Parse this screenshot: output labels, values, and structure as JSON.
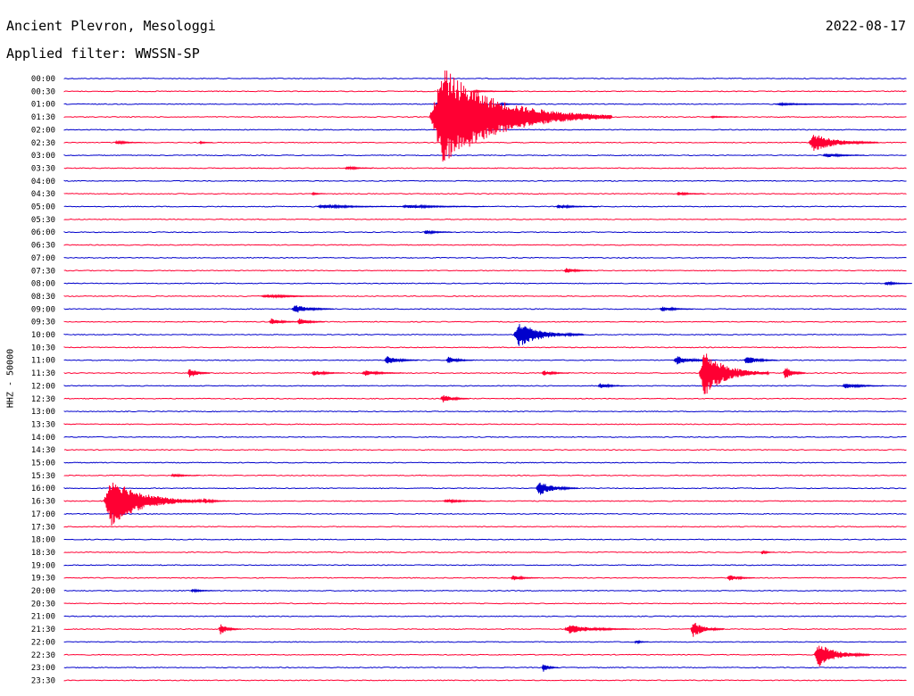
{
  "header": {
    "station": "Ancient Plevron, Mesologgi",
    "filter_label": "Applied filter: WWSSN-SP",
    "date": "2022-08-17"
  },
  "channel_label": "HHZ - 50000",
  "colors": {
    "odd_trace": "#0000cc",
    "even_trace": "#ff0033"
  },
  "chart_data": {
    "type": "helicorder",
    "date": "2022-08-17",
    "filter": "WWSSN-SP",
    "channel": "HHZ - 50000",
    "row_interval_minutes": 30,
    "row_labels": [
      "00:00",
      "00:30",
      "01:00",
      "01:30",
      "02:00",
      "02:30",
      "03:00",
      "03:30",
      "04:00",
      "04:30",
      "05:00",
      "05:30",
      "06:00",
      "06:30",
      "07:00",
      "07:30",
      "08:00",
      "08:30",
      "09:00",
      "09:30",
      "10:00",
      "10:30",
      "11:00",
      "11:30",
      "12:00",
      "12:30",
      "13:00",
      "13:30",
      "14:00",
      "14:30",
      "15:00",
      "15:30",
      "16:00",
      "16:30",
      "17:00",
      "17:30",
      "18:00",
      "18:30",
      "19:00",
      "19:30",
      "20:00",
      "20:30",
      "21:00",
      "21:30",
      "22:00",
      "22:30",
      "23:00",
      "23:30"
    ],
    "row_colors": [
      "#0000cc",
      "#ff0033"
    ],
    "events": [
      {
        "row": 1,
        "minute": 14.5,
        "amp": 1.0,
        "dur": 1.5
      },
      {
        "row": 2,
        "minute": 13.2,
        "amp": 3.2,
        "dur": 1.2
      },
      {
        "row": 2,
        "minute": 15.5,
        "amp": 1.2,
        "dur": 0.8
      },
      {
        "row": 2,
        "minute": 25.3,
        "amp": 1.0,
        "dur": 3.0
      },
      {
        "row": 3,
        "minute": 13.0,
        "amp": 55,
        "dur": 6.5
      },
      {
        "row": 3,
        "minute": 23.0,
        "amp": 1.0,
        "dur": 1.0
      },
      {
        "row": 5,
        "minute": 1.8,
        "amp": 2.0,
        "dur": 1.0
      },
      {
        "row": 5,
        "minute": 4.8,
        "amp": 1.2,
        "dur": 0.5
      },
      {
        "row": 5,
        "minute": 26.5,
        "amp": 10,
        "dur": 2.5
      },
      {
        "row": 6,
        "minute": 27.0,
        "amp": 2.5,
        "dur": 1.5
      },
      {
        "row": 7,
        "minute": 10.0,
        "amp": 2.0,
        "dur": 1.0
      },
      {
        "row": 9,
        "minute": 8.8,
        "amp": 1.5,
        "dur": 0.5
      },
      {
        "row": 9,
        "minute": 21.8,
        "amp": 2.0,
        "dur": 1.0
      },
      {
        "row": 10,
        "minute": 9.0,
        "amp": 2.0,
        "dur": 3.0
      },
      {
        "row": 10,
        "minute": 12.0,
        "amp": 2.0,
        "dur": 3.0
      },
      {
        "row": 10,
        "minute": 17.5,
        "amp": 2.0,
        "dur": 1.5
      },
      {
        "row": 12,
        "minute": 12.8,
        "amp": 2.5,
        "dur": 1.0
      },
      {
        "row": 15,
        "minute": 17.8,
        "amp": 3.0,
        "dur": 1.0
      },
      {
        "row": 16,
        "minute": 29.2,
        "amp": 2.0,
        "dur": 1.0
      },
      {
        "row": 17,
        "minute": 7.0,
        "amp": 2.0,
        "dur": 2.5
      },
      {
        "row": 18,
        "minute": 8.1,
        "amp": 5.0,
        "dur": 1.5
      },
      {
        "row": 18,
        "minute": 21.2,
        "amp": 3.0,
        "dur": 1.2
      },
      {
        "row": 19,
        "minute": 7.3,
        "amp": 4.0,
        "dur": 1.0
      },
      {
        "row": 19,
        "minute": 8.3,
        "amp": 4.0,
        "dur": 1.0
      },
      {
        "row": 20,
        "minute": 16.0,
        "amp": 14,
        "dur": 2.5
      },
      {
        "row": 22,
        "minute": 11.4,
        "amp": 5.0,
        "dur": 1.2
      },
      {
        "row": 22,
        "minute": 13.6,
        "amp": 4.0,
        "dur": 1.0
      },
      {
        "row": 22,
        "minute": 21.7,
        "amp": 5.0,
        "dur": 1.5
      },
      {
        "row": 22,
        "minute": 24.2,
        "amp": 5.0,
        "dur": 1.2
      },
      {
        "row": 23,
        "minute": 4.4,
        "amp": 6.0,
        "dur": 0.8
      },
      {
        "row": 23,
        "minute": 8.8,
        "amp": 3.0,
        "dur": 1.2
      },
      {
        "row": 23,
        "minute": 10.6,
        "amp": 3.0,
        "dur": 1.5
      },
      {
        "row": 23,
        "minute": 17.0,
        "amp": 3.0,
        "dur": 1.0
      },
      {
        "row": 23,
        "minute": 22.6,
        "amp": 26,
        "dur": 2.5
      },
      {
        "row": 23,
        "minute": 25.6,
        "amp": 8.0,
        "dur": 0.8
      },
      {
        "row": 24,
        "minute": 19.0,
        "amp": 3.0,
        "dur": 1.0
      },
      {
        "row": 24,
        "minute": 27.7,
        "amp": 3.0,
        "dur": 1.5
      },
      {
        "row": 25,
        "minute": 13.4,
        "amp": 5.0,
        "dur": 1.0
      },
      {
        "row": 31,
        "minute": 3.8,
        "amp": 2.0,
        "dur": 1.0
      },
      {
        "row": 32,
        "minute": 16.8,
        "amp": 8.0,
        "dur": 1.5
      },
      {
        "row": 33,
        "minute": 1.4,
        "amp": 28,
        "dur": 3.5
      },
      {
        "row": 33,
        "minute": 4.9,
        "amp": 3.0,
        "dur": 1.0
      },
      {
        "row": 33,
        "minute": 13.5,
        "amp": 2.0,
        "dur": 1.5
      },
      {
        "row": 37,
        "minute": 24.8,
        "amp": 2.0,
        "dur": 0.5
      },
      {
        "row": 39,
        "minute": 15.9,
        "amp": 3.0,
        "dur": 1.0
      },
      {
        "row": 39,
        "minute": 23.6,
        "amp": 4.0,
        "dur": 1.0
      },
      {
        "row": 40,
        "minute": 4.5,
        "amp": 1.5,
        "dur": 1.0
      },
      {
        "row": 43,
        "minute": 5.5,
        "amp": 6.0,
        "dur": 0.8
      },
      {
        "row": 43,
        "minute": 17.8,
        "amp": 5.0,
        "dur": 2.5
      },
      {
        "row": 43,
        "minute": 22.3,
        "amp": 9.0,
        "dur": 1.2
      },
      {
        "row": 44,
        "minute": 20.3,
        "amp": 2.0,
        "dur": 0.5
      },
      {
        "row": 45,
        "minute": 26.7,
        "amp": 14,
        "dur": 2.0
      },
      {
        "row": 46,
        "minute": 17.0,
        "amp": 5.0,
        "dur": 0.6
      }
    ]
  }
}
